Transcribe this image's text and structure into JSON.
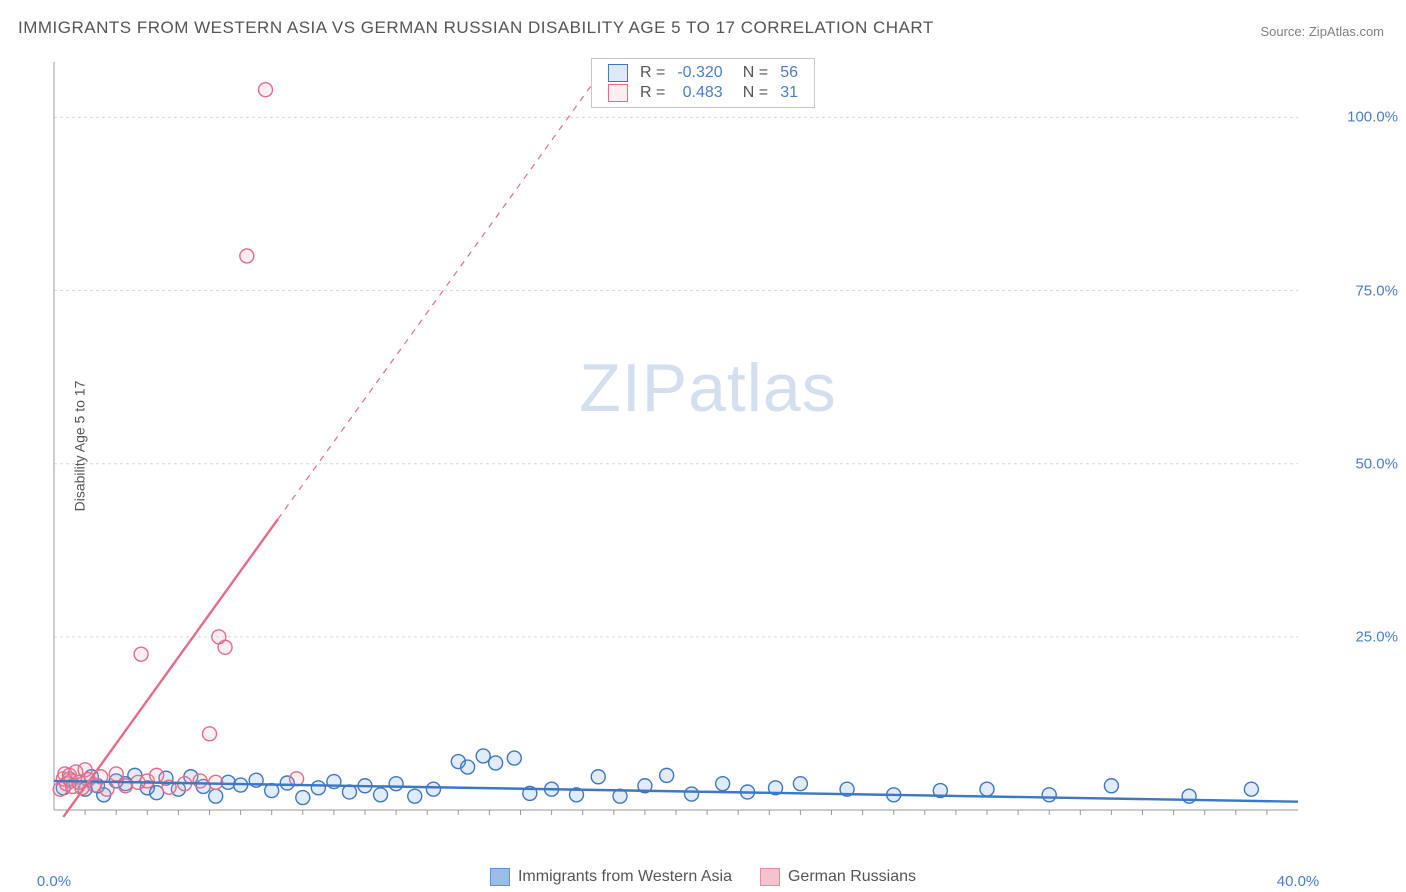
{
  "title": "IMMIGRANTS FROM WESTERN ASIA VS GERMAN RUSSIAN DISABILITY AGE 5 TO 17 CORRELATION CHART",
  "source": "Source: ZipAtlas.com",
  "ylabel": "Disability Age 5 to 17",
  "watermark_a": "ZIP",
  "watermark_b": "atlas",
  "chart": {
    "type": "scatter",
    "xlim": [
      0,
      40
    ],
    "ylim": [
      0,
      108
    ],
    "xticks": [
      {
        "v": 0,
        "label": "0.0%"
      },
      {
        "v": 40,
        "label": "40.0%"
      }
    ],
    "yticks": [
      {
        "v": 25,
        "label": "25.0%"
      },
      {
        "v": 50,
        "label": "50.0%"
      },
      {
        "v": 75,
        "label": "75.0%"
      },
      {
        "v": 100,
        "label": "100.0%"
      }
    ],
    "grid_color": "#d9d9d9",
    "axis_color": "#999999",
    "background": "#ffffff",
    "marker_radius": 7,
    "marker_stroke_width": 1.4,
    "marker_fill_opacity": 0.18,
    "trend_width_solid": 2.4,
    "trend_width_dash": 1.2,
    "series": [
      {
        "name": "Immigrants from Western Asia",
        "color": "#5b93d8",
        "stroke": "#3d78c5",
        "R": "-0.320",
        "N": "56",
        "trend": {
          "x1": 0,
          "y1": 4.2,
          "x2": 40,
          "y2": 1.2,
          "dash": false
        },
        "points": [
          [
            0.3,
            3.2
          ],
          [
            0.5,
            4.5
          ],
          [
            0.8,
            4.0
          ],
          [
            1.0,
            3.0
          ],
          [
            1.2,
            4.8
          ],
          [
            1.4,
            3.5
          ],
          [
            1.6,
            2.2
          ],
          [
            2.0,
            4.2
          ],
          [
            2.3,
            3.8
          ],
          [
            2.6,
            5.0
          ],
          [
            3.0,
            3.2
          ],
          [
            3.3,
            2.5
          ],
          [
            3.6,
            4.6
          ],
          [
            4.0,
            3.0
          ],
          [
            4.4,
            4.8
          ],
          [
            4.8,
            3.4
          ],
          [
            5.2,
            2.0
          ],
          [
            5.6,
            4.0
          ],
          [
            6.0,
            3.6
          ],
          [
            6.5,
            4.3
          ],
          [
            7.0,
            2.8
          ],
          [
            7.5,
            3.9
          ],
          [
            8.0,
            1.8
          ],
          [
            8.5,
            3.2
          ],
          [
            9.0,
            4.1
          ],
          [
            9.5,
            2.6
          ],
          [
            10.0,
            3.5
          ],
          [
            10.5,
            2.2
          ],
          [
            11.0,
            3.8
          ],
          [
            11.6,
            2.0
          ],
          [
            12.2,
            3.0
          ],
          [
            13.0,
            7.0
          ],
          [
            13.3,
            6.2
          ],
          [
            13.8,
            7.8
          ],
          [
            14.2,
            6.8
          ],
          [
            14.8,
            7.5
          ],
          [
            15.3,
            2.4
          ],
          [
            16.0,
            3.0
          ],
          [
            16.8,
            2.2
          ],
          [
            17.5,
            4.8
          ],
          [
            18.2,
            2.0
          ],
          [
            19.0,
            3.5
          ],
          [
            19.7,
            5.0
          ],
          [
            20.5,
            2.3
          ],
          [
            21.5,
            3.8
          ],
          [
            22.3,
            2.6
          ],
          [
            23.2,
            3.2
          ],
          [
            24.0,
            3.8
          ],
          [
            25.5,
            3.0
          ],
          [
            27.0,
            2.2
          ],
          [
            28.5,
            2.8
          ],
          [
            30.0,
            3.0
          ],
          [
            32.0,
            2.2
          ],
          [
            34.0,
            3.5
          ],
          [
            36.5,
            2.0
          ],
          [
            38.5,
            3.0
          ]
        ]
      },
      {
        "name": "German Russians",
        "color": "#f3a9b8",
        "stroke": "#e76b89",
        "R": "0.483",
        "N": "31",
        "trend": {
          "x1": 0.3,
          "y1": -1.0,
          "x2": 7.2,
          "y2": 42.0,
          "dash": false
        },
        "trend_dash": {
          "x1": 7.2,
          "y1": 42.0,
          "x2": 17.5,
          "y2": 106.0
        },
        "points": [
          [
            0.2,
            3.0
          ],
          [
            0.3,
            4.5
          ],
          [
            0.35,
            5.2
          ],
          [
            0.4,
            3.8
          ],
          [
            0.5,
            5.0
          ],
          [
            0.55,
            4.2
          ],
          [
            0.6,
            3.4
          ],
          [
            0.7,
            5.5
          ],
          [
            0.8,
            4.0
          ],
          [
            0.9,
            3.2
          ],
          [
            1.0,
            5.8
          ],
          [
            1.1,
            4.4
          ],
          [
            1.3,
            3.6
          ],
          [
            1.5,
            4.8
          ],
          [
            1.7,
            3.0
          ],
          [
            2.0,
            5.2
          ],
          [
            2.3,
            3.5
          ],
          [
            2.7,
            4.0
          ],
          [
            3.0,
            4.2
          ],
          [
            3.3,
            5.0
          ],
          [
            3.7,
            3.3
          ],
          [
            4.2,
            3.8
          ],
          [
            4.7,
            4.2
          ],
          [
            5.2,
            4.0
          ],
          [
            2.8,
            22.5
          ],
          [
            5.5,
            23.5
          ],
          [
            5.3,
            25.0
          ],
          [
            5.0,
            11.0
          ],
          [
            6.2,
            80.0
          ],
          [
            6.8,
            104.0
          ],
          [
            7.8,
            4.5
          ]
        ]
      }
    ],
    "legend_bottom": [
      {
        "label": "Immigrants from Western Asia",
        "fill": "#9dbce6",
        "stroke": "#5b93d8"
      },
      {
        "label": "German Russians",
        "fill": "#f6c2ce",
        "stroke": "#e98aa2"
      }
    ]
  }
}
